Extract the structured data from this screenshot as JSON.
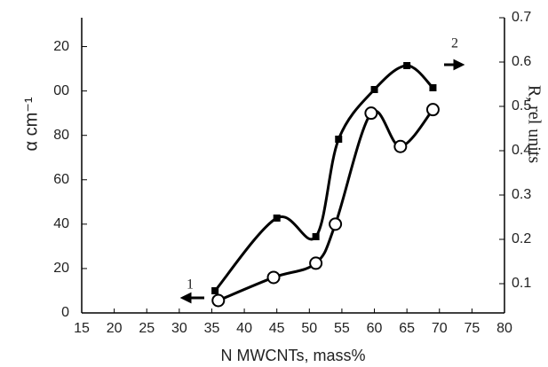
{
  "chart_data": {
    "type": "scatter",
    "x_label": "N  MWCNTs, mass%",
    "y_label": "α cm⁻¹",
    "y2_label": "R, rel units",
    "annotations": [
      "1",
      "2"
    ],
    "xlim": [
      15,
      80
    ],
    "xticks": [
      15,
      20,
      25,
      30,
      35,
      40,
      45,
      50,
      55,
      60,
      65,
      70,
      75,
      80
    ],
    "ylim": [
      0,
      133
    ],
    "yticks": [
      0,
      20,
      40,
      60,
      80,
      {
        "value": 100,
        "label": "00"
      },
      {
        "value": 120,
        "label": "20"
      }
    ],
    "y2lim": [
      0.034,
      0.7
    ],
    "y2ticks": [
      0.1,
      0.2,
      0.3,
      0.4,
      0.5,
      0.6,
      0.7
    ],
    "series": [
      {
        "marker": "circle",
        "color": "#000000",
        "axis": "y",
        "x": [
          36,
          44.5,
          51,
          54,
          59.5,
          64,
          69
        ],
        "values": [
          5.6,
          16,
          22.4,
          40,
          90,
          75,
          91.6
        ]
      },
      {
        "marker": "square",
        "color": "#000000",
        "axis": "y2",
        "x": [
          35.5,
          45,
          51,
          54.5,
          60,
          65,
          69
        ],
        "values": [
          0.084,
          0.248,
          0.206,
          0.426,
          0.538,
          0.592,
          0.542
        ]
      }
    ]
  }
}
